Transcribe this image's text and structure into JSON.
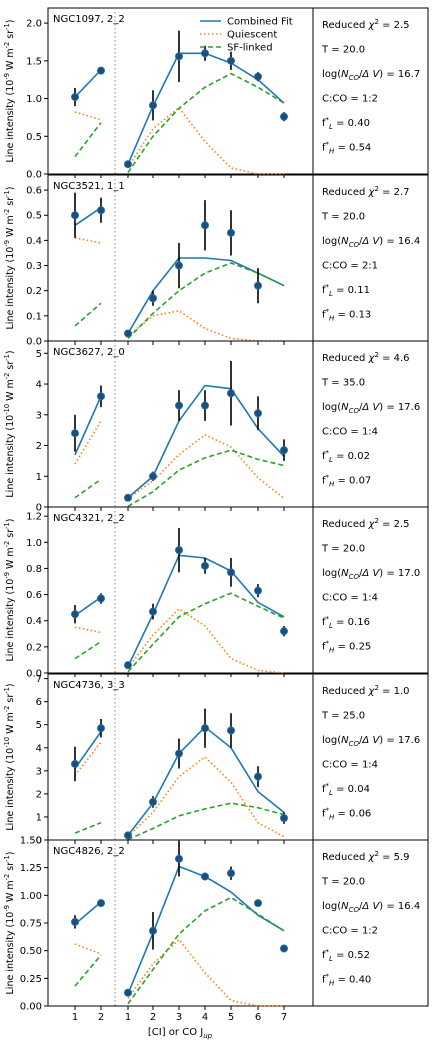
{
  "chart_data": {
    "type": "line",
    "xlabel": "[CI] or CO J$_{up}$",
    "x_tick_labels": [
      "1",
      "2",
      "1",
      "2",
      "3",
      "4",
      "5",
      "6",
      "7"
    ],
    "legend": {
      "placement": "top-center",
      "entries": [
        "Combined Fit",
        "Quiescent",
        "SF-linked"
      ]
    },
    "colors": {
      "combined": "#1f77b4",
      "quiescent": "#ff7f0e",
      "sf": "#2ca02c",
      "data": "#1f4e79",
      "divider": "#999999"
    },
    "panels": [
      {
        "name": "NGC1097, 2_2",
        "ylabel": "Line intensity (10$^{-9}$ W m$^{-2}$ sr$^{-1}$)",
        "ylim": [
          0,
          2.2
        ],
        "yticks": [
          "0.0",
          "0.5",
          "1.0",
          "1.5",
          "2.0"
        ],
        "yticks_values": [
          0,
          0.5,
          1.0,
          1.5,
          2.0
        ],
        "stats": [
          "Reduced $\\chi^2$ = 2.5",
          "T = 20.0",
          "log($N_{CO}$/$\\Delta V$) = 16.7",
          "C:CO = 1:2",
          "f$^*_L$ = 0.40",
          "f$^*_H$ = 0.54"
        ],
        "ci": {
          "combined": [
            1.02,
            1.38
          ],
          "quiescent": [
            0.82,
            0.72
          ],
          "sf": [
            0.23,
            0.68
          ]
        },
        "co": {
          "combined": [
            0.13,
            0.9,
            1.6,
            1.6,
            1.47,
            1.25,
            0.94
          ],
          "quiescent": [
            0.09,
            0.6,
            0.88,
            0.43,
            0.08,
            0,
            0
          ],
          "sf": [
            0.02,
            0.5,
            0.87,
            1.15,
            1.33,
            1.15,
            0.94
          ]
        },
        "obs_ci": [
          [
            1.02,
            0.12
          ],
          [
            1.37,
            0.05
          ]
        ],
        "obs_co": [
          [
            0.13,
            0.03
          ],
          [
            0.91,
            0.2
          ],
          [
            1.56,
            0.34
          ],
          [
            1.6,
            0.1
          ],
          [
            1.5,
            0.12
          ],
          [
            1.29,
            0.06
          ],
          [
            0.76,
            0.06
          ]
        ]
      },
      {
        "name": "NGC3521, 1_1",
        "ylabel": "Line intensity (10$^{-9}$ W m$^{-2}$ sr$^{-1}$)",
        "ylim": [
          0,
          0.66
        ],
        "yticks": [
          "0.0",
          "0.1",
          "0.2",
          "0.3",
          "0.4",
          "0.5",
          "0.6"
        ],
        "yticks_values": [
          0,
          0.1,
          0.2,
          0.3,
          0.4,
          0.5,
          0.6
        ],
        "stats": [
          "Reduced $\\chi^2$ = 2.7",
          "T = 20.0",
          "log($N_{CO}$/$\\Delta V$) = 16.4",
          "C:CO = 2:1",
          "f$^*_L$ = 0.11",
          "f$^*_H$ = 0.13"
        ],
        "ci": {
          "combined": [
            0.46,
            0.53
          ],
          "quiescent": [
            0.41,
            0.39
          ],
          "sf": [
            0.06,
            0.15
          ]
        },
        "co": {
          "combined": [
            0.03,
            0.2,
            0.33,
            0.33,
            0.32,
            0.27,
            0.22
          ],
          "quiescent": [
            0.02,
            0.1,
            0.12,
            0.05,
            0.01,
            0,
            0
          ],
          "sf": [
            0.01,
            0.11,
            0.2,
            0.27,
            0.31,
            0.27,
            0.22
          ]
        },
        "obs_ci": [
          [
            0.5,
            0.09
          ],
          [
            0.52,
            0.05
          ]
        ],
        "obs_co": [
          [
            0.03,
            0.01
          ],
          [
            0.17,
            0.03
          ],
          [
            0.3,
            0.09
          ],
          [
            0.46,
            0.1
          ],
          [
            0.43,
            0.09
          ],
          [
            0.22,
            0.07
          ],
          null
        ]
      },
      {
        "name": "NGC3627, 2_0",
        "ylabel": "Line intensity (10$^{-10}$ W m$^{-2}$ sr$^{-1}$)",
        "ylim": [
          0,
          5.4
        ],
        "yticks": [
          "0",
          "1",
          "2",
          "3",
          "4",
          "5"
        ],
        "yticks_values": [
          0,
          1,
          2,
          3,
          4,
          5
        ],
        "stats": [
          "Reduced $\\chi^2$ = 4.6",
          "T = 35.0",
          "log($N_{CO}$/$\\Delta V$) = 17.6",
          "C:CO = 1:4",
          "f$^*_L$ = 0.02",
          "f$^*_H$ = 0.07"
        ],
        "ci": {
          "combined": [
            1.7,
            3.6
          ],
          "quiescent": [
            1.4,
            2.8
          ],
          "sf": [
            0.3,
            0.9
          ]
        },
        "co": {
          "combined": [
            0.3,
            1.0,
            2.8,
            3.95,
            3.85,
            2.55,
            1.65
          ],
          "quiescent": [
            0.28,
            0.85,
            1.7,
            2.35,
            1.95,
            0.95,
            0.28
          ],
          "sf": [
            0.02,
            0.5,
            1.2,
            1.6,
            1.85,
            1.55,
            1.35
          ]
        },
        "obs_ci": [
          [
            2.4,
            0.6
          ],
          [
            3.6,
            0.35
          ]
        ],
        "obs_co": [
          [
            0.3,
            0.1
          ],
          [
            1.0,
            0.15
          ],
          [
            3.3,
            0.5
          ],
          [
            3.3,
            0.5
          ],
          [
            3.7,
            1.05
          ],
          [
            3.05,
            0.55
          ],
          [
            1.85,
            0.35
          ]
        ]
      },
      {
        "name": "NGC4321, 2_2",
        "ylabel": "Line intensity (10$^{-9}$ W m$^{-2}$ sr$^{-1}$)",
        "ylim": [
          0,
          1.27
        ],
        "yticks": [
          "0.0",
          "0.2",
          "0.4",
          "0.6",
          "0.8",
          "1.0",
          "1.2"
        ],
        "yticks_values": [
          0,
          0.2,
          0.4,
          0.6,
          0.8,
          1.0,
          1.2
        ],
        "stats": [
          "Reduced $\\chi^2$ = 2.5",
          "T = 20.0",
          "log($N_{CO}$/$\\Delta V$) = 17.0",
          "C:CO = 1:4",
          "f$^*_L$ = 0.16",
          "f$^*_H$ = 0.25"
        ],
        "ci": {
          "combined": [
            0.44,
            0.58
          ],
          "quiescent": [
            0.35,
            0.31
          ],
          "sf": [
            0.11,
            0.24
          ]
        },
        "co": {
          "combined": [
            0.05,
            0.45,
            0.9,
            0.88,
            0.78,
            0.54,
            0.43
          ],
          "quiescent": [
            0.04,
            0.29,
            0.49,
            0.36,
            0.11,
            0.02,
            0
          ],
          "sf": [
            0.01,
            0.22,
            0.43,
            0.53,
            0.61,
            0.51,
            0.42
          ]
        },
        "obs_ci": [
          [
            0.45,
            0.07
          ],
          [
            0.57,
            0.04
          ]
        ],
        "obs_co": [
          [
            0.06,
            0.02
          ],
          [
            0.47,
            0.06
          ],
          [
            0.94,
            0.17
          ],
          [
            0.82,
            0.06
          ],
          [
            0.77,
            0.11
          ],
          [
            0.63,
            0.05
          ],
          [
            0.32,
            0.04
          ]
        ]
      },
      {
        "name": "NGC4736, 3_3",
        "ylabel": "Line intensity (10$^{-10}$ W m$^{-2}$ sr$^{-1}$)",
        "ylim": [
          0,
          7.2
        ],
        "yticks": [
          "0",
          "1",
          "2",
          "3",
          "4",
          "5",
          "6",
          "7"
        ],
        "yticks_values": [
          0,
          1,
          2,
          3,
          4,
          5,
          6,
          7
        ],
        "stats": [
          "Reduced $\\chi^2$ = 1.0",
          "T = 25.0",
          "log($N_{CO}$/$\\Delta V$) = 17.6",
          "C:CO = 1:4",
          "f$^*_L$ = 0.04",
          "f$^*_H$ = 0.06"
        ],
        "ci": {
          "combined": [
            3.1,
            4.7
          ],
          "quiescent": [
            2.8,
            4.25
          ],
          "sf": [
            0.3,
            0.75
          ]
        },
        "co": {
          "combined": [
            0.2,
            1.6,
            3.75,
            4.9,
            4.0,
            2.1,
            1.2
          ],
          "quiescent": [
            0.15,
            1.2,
            2.75,
            3.6,
            2.5,
            0.75,
            0.15
          ],
          "sf": [
            0.02,
            0.5,
            1.05,
            1.35,
            1.6,
            1.4,
            1.1
          ]
        },
        "obs_ci": [
          [
            3.3,
            0.75
          ],
          [
            4.85,
            0.4
          ]
        ],
        "obs_co": [
          [
            0.2,
            0.15
          ],
          [
            1.65,
            0.25
          ],
          [
            3.75,
            0.65
          ],
          [
            4.85,
            0.85
          ],
          [
            4.75,
            0.75
          ],
          [
            2.75,
            0.45
          ],
          [
            0.95,
            0.25
          ]
        ]
      },
      {
        "name": "NGC4826, 2_2",
        "ylabel": "Line intensity (10$^{-9}$ W m$^{-2}$ sr$^{-1}$)",
        "ylim": [
          0,
          1.5
        ],
        "yticks": [
          "0.00",
          "0.25",
          "0.50",
          "0.75",
          "1.00",
          "1.25",
          "1.50"
        ],
        "yticks_values": [
          0,
          0.25,
          0.5,
          0.75,
          1.0,
          1.25,
          1.5
        ],
        "stats": [
          "Reduced $\\chi^2$ = 5.9",
          "T = 20.0",
          "log($N_{CO}$/$\\Delta V$) = 16.4",
          "C:CO = 1:2",
          "f$^*_L$ = 0.52",
          "f$^*_H$ = 0.40"
        ],
        "ci": {
          "combined": [
            0.74,
            0.94
          ],
          "quiescent": [
            0.56,
            0.47
          ],
          "sf": [
            0.18,
            0.46
          ]
        },
        "co": {
          "combined": [
            0.11,
            0.66,
            1.26,
            1.17,
            1.03,
            0.82,
            0.68
          ],
          "quiescent": [
            0.07,
            0.38,
            0.6,
            0.3,
            0.05,
            0,
            0
          ],
          "sf": [
            0.02,
            0.33,
            0.65,
            0.86,
            0.98,
            0.83,
            0.68
          ]
        },
        "obs_ci": [
          [
            0.76,
            0.06
          ],
          [
            0.93,
            0.03
          ]
        ],
        "obs_co": [
          [
            0.12,
            0.03
          ],
          [
            0.68,
            0.17
          ],
          [
            1.33,
            0.16
          ],
          [
            1.17,
            0.03
          ],
          [
            1.2,
            0.06
          ],
          [
            0.93,
            0.03
          ],
          [
            0.52,
            0.02
          ]
        ]
      }
    ]
  }
}
